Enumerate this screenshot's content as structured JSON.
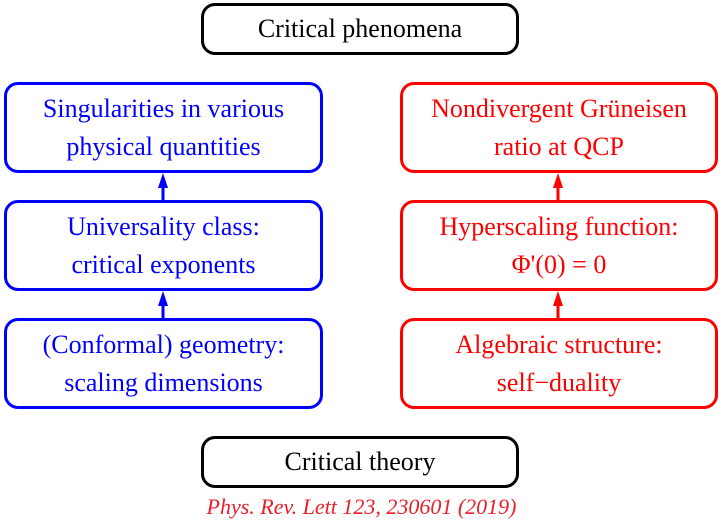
{
  "top": "Critical phenomena",
  "bottom": "Critical theory",
  "left": [
    [
      "Singularities in various",
      "physical quantities"
    ],
    [
      "Universality class:",
      "critical exponents"
    ],
    [
      "(Conformal) geometry:",
      "scaling dimensions"
    ]
  ],
  "right": [
    [
      "Nondivergent Grüneisen",
      "ratio at QCP"
    ],
    [
      "Hyperscaling function:",
      "Φ'(0) = 0"
    ],
    [
      "Algebraic structure:",
      "self−duality"
    ]
  ],
  "citation": "Phys. Rev. Lett 123, 230601 (2019)",
  "colors": {
    "left": "#0000ff",
    "right": "#ff0000",
    "citation": "#e8202a"
  }
}
